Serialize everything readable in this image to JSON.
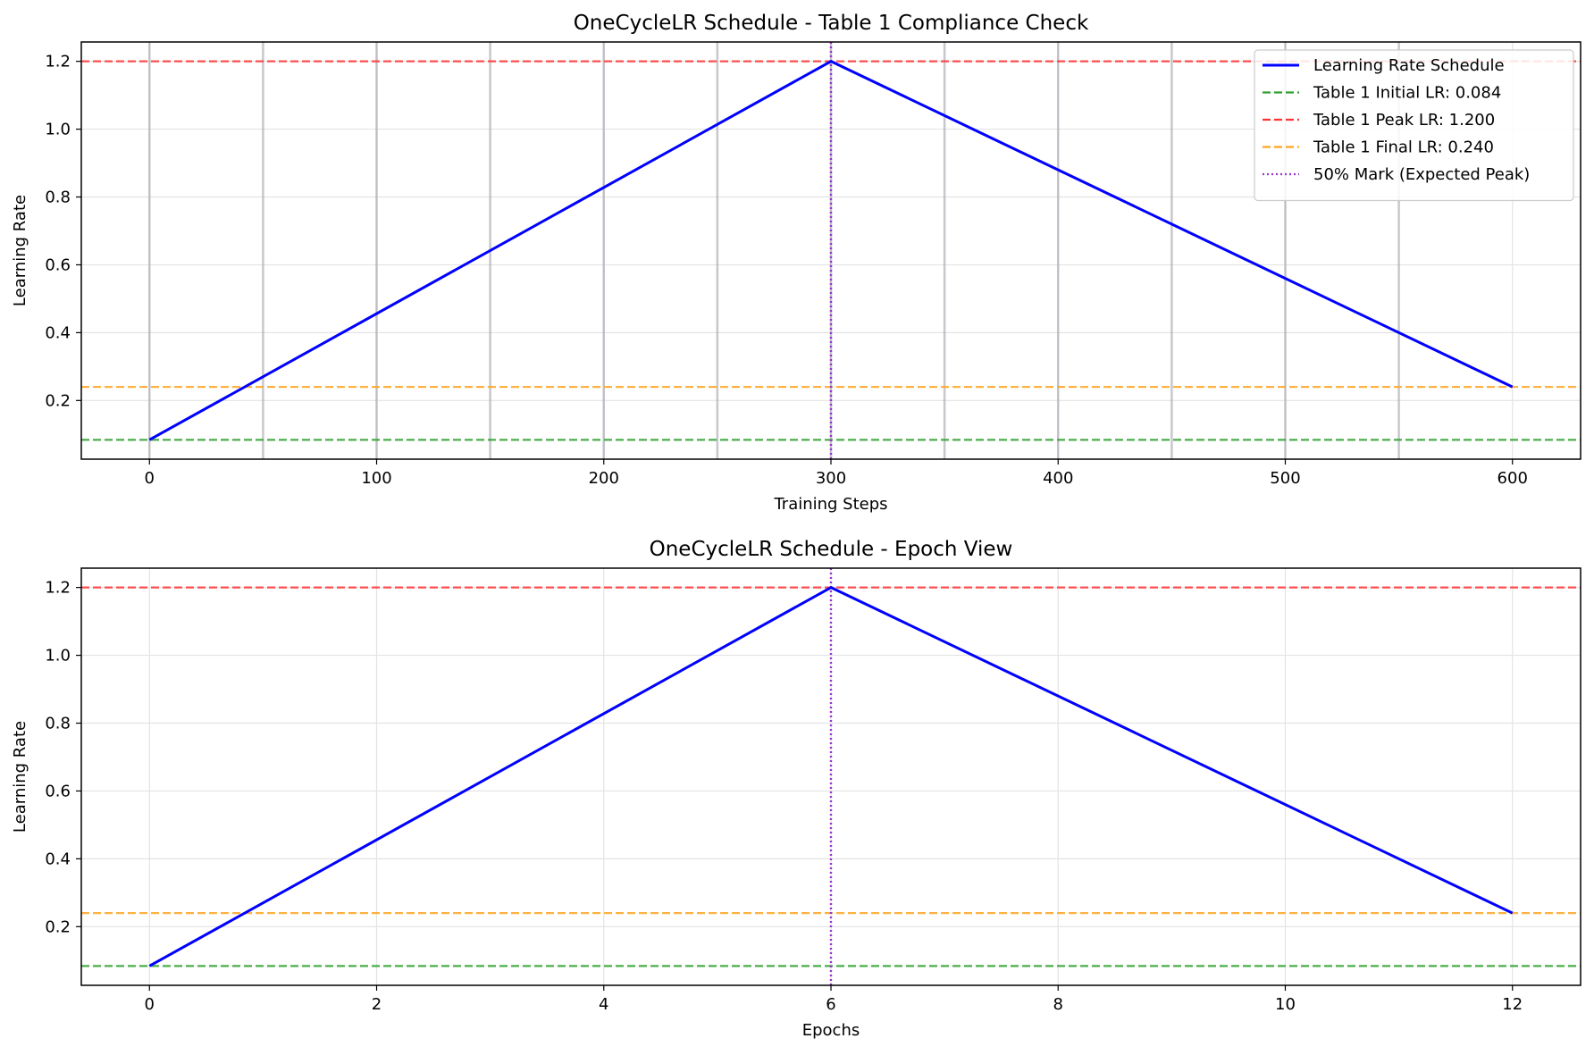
{
  "chart_data": [
    {
      "type": "line",
      "title": "OneCycleLR Schedule - Table 1 Compliance Check",
      "xlabel": "Training Steps",
      "ylabel": "Learning Rate",
      "xlim": [
        -30,
        630
      ],
      "ylim": [
        0.027,
        1.257
      ],
      "xticks": [
        0,
        100,
        200,
        300,
        400,
        500,
        600
      ],
      "yticks": [
        0.2,
        0.4,
        0.6,
        0.8,
        1.0,
        1.2
      ],
      "grid": true,
      "vertical_markers_x": [
        0,
        50,
        100,
        150,
        200,
        250,
        300,
        350,
        400,
        450,
        500,
        550
      ],
      "legend_position": "top-right",
      "series": [
        {
          "name": "Learning Rate Schedule",
          "x": [
            0,
            300,
            600
          ],
          "y": [
            0.084,
            1.2,
            0.24
          ],
          "color": "#0000ff",
          "style": "solid"
        }
      ],
      "reference_lines": [
        {
          "name": "Table 1 Initial LR: 0.084",
          "orientation": "horizontal",
          "value": 0.084,
          "color": "#2ca02c",
          "style": "dashed"
        },
        {
          "name": "Table 1 Peak LR: 1.200",
          "orientation": "horizontal",
          "value": 1.2,
          "color": "#ff3333",
          "style": "dashed"
        },
        {
          "name": "Table 1 Final LR: 0.240",
          "orientation": "horizontal",
          "value": 0.24,
          "color": "#ffa520",
          "style": "dashed"
        },
        {
          "name": "50% Mark (Expected Peak)",
          "orientation": "vertical",
          "value": 300,
          "color": "#9932cc",
          "style": "dotted"
        }
      ]
    },
    {
      "type": "line",
      "title": "OneCycleLR Schedule - Epoch View",
      "xlabel": "Epochs",
      "ylabel": "Learning Rate",
      "xlim": [
        -0.6,
        12.6
      ],
      "ylim": [
        0.027,
        1.257
      ],
      "xticks": [
        0,
        2,
        4,
        6,
        8,
        10,
        12
      ],
      "yticks": [
        0.2,
        0.4,
        0.6,
        0.8,
        1.0,
        1.2
      ],
      "grid": true,
      "series": [
        {
          "x": [
            0,
            6,
            12
          ],
          "y": [
            0.084,
            1.2,
            0.24
          ],
          "color": "#0000ff",
          "style": "solid"
        }
      ],
      "reference_lines": [
        {
          "orientation": "horizontal",
          "value": 0.084,
          "color": "#2ca02c",
          "style": "dashed"
        },
        {
          "orientation": "horizontal",
          "value": 1.2,
          "color": "#ff3333",
          "style": "dashed"
        },
        {
          "orientation": "horizontal",
          "value": 0.24,
          "color": "#ffa520",
          "style": "dashed"
        },
        {
          "orientation": "vertical",
          "value": 6,
          "color": "#9932cc",
          "style": "dotted"
        }
      ]
    }
  ]
}
